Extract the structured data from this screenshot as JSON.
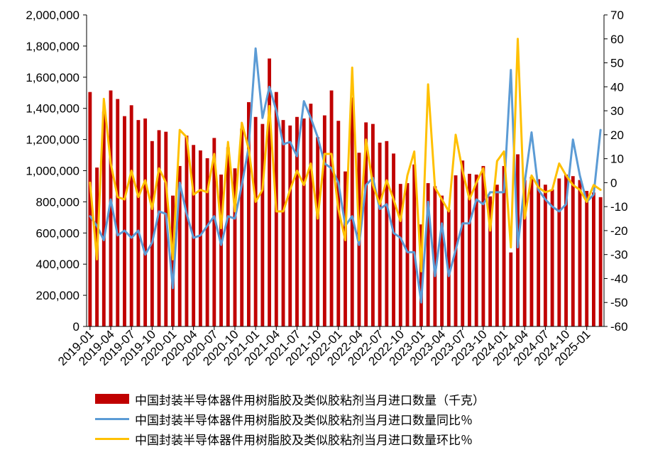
{
  "chart_data": {
    "type": "bar+line",
    "title": "",
    "categories": [
      "2019-01",
      "2019-02",
      "2019-03",
      "2019-04",
      "2019-05",
      "2019-06",
      "2019-07",
      "2019-08",
      "2019-09",
      "2019-10",
      "2019-11",
      "2019-12",
      "2020-01",
      "2020-02",
      "2020-03",
      "2020-04",
      "2020-05",
      "2020-06",
      "2020-07",
      "2020-08",
      "2020-09",
      "2020-10",
      "2020-11",
      "2020-12",
      "2021-01",
      "2021-02",
      "2021-03",
      "2021-04",
      "2021-05",
      "2021-06",
      "2021-07",
      "2021-08",
      "2021-09",
      "2021-10",
      "2021-11",
      "2021-12",
      "2022-01",
      "2022-02",
      "2022-03",
      "2022-04",
      "2022-05",
      "2022-06",
      "2022-07",
      "2022-08",
      "2022-09",
      "2022-10",
      "2022-11",
      "2022-12",
      "2023-01",
      "2023-02",
      "2023-03",
      "2023-04",
      "2023-05",
      "2023-06",
      "2023-07",
      "2023-08",
      "2023-09",
      "2023-10",
      "2023-11",
      "2023-12",
      "2024-01",
      "2024-02",
      "2024-03",
      "2024-04",
      "2024-05",
      "2024-06",
      "2024-07",
      "2024-08",
      "2024-09",
      "2024-10",
      "2024-11",
      "2024-12",
      "2025-01",
      "2025-02",
      "2025-03"
    ],
    "x_tick_labels": [
      "2019-01",
      "2019-04",
      "2019-07",
      "2019-10",
      "2020-01",
      "2020-04",
      "2020-07",
      "2020-10",
      "2021-01",
      "2021-04",
      "2021-07",
      "2021-10",
      "2022-01",
      "2022-04",
      "2022-07",
      "2022-10",
      "2023-01",
      "2023-04",
      "2023-07",
      "2023-10",
      "2024-01",
      "2024-04",
      "2024-07",
      "2024-10",
      "2025-01"
    ],
    "y_left": {
      "ylim": [
        0,
        2000000
      ],
      "ticks": [
        "0",
        "200,000",
        "400,000",
        "600,000",
        "800,000",
        "1,000,000",
        "1,200,000",
        "1,400,000",
        "1,600,000",
        "1,800,000",
        "2,000,000"
      ]
    },
    "y_right": {
      "ylim": [
        -60,
        70
      ],
      "ticks": [
        "-60",
        "-50",
        "-40",
        "-30",
        "-20",
        "-10",
        "0",
        "10",
        "20",
        "30",
        "40",
        "50",
        "60",
        "70"
      ]
    },
    "series": [
      {
        "name": "中国封装半导体器件用树脂胶及类似胶粘剂当月进口数量（千克）",
        "type": "bar",
        "axis": "left",
        "color": "#C00000",
        "values": [
          1505000,
          1020000,
          1380000,
          1515000,
          1460000,
          1350000,
          1420000,
          1325000,
          1335000,
          1190000,
          1260000,
          1250000,
          840000,
          1030000,
          1225000,
          1165000,
          1130000,
          1080000,
          1210000,
          975000,
          1150000,
          1015000,
          1270000,
          1440000,
          1345000,
          1300000,
          1720000,
          1505000,
          1325000,
          1290000,
          1345000,
          1335000,
          1430000,
          1215000,
          1355000,
          1515000,
          1320000,
          995000,
          1470000,
          1115000,
          1310000,
          1300000,
          1180000,
          1190000,
          1110000,
          915000,
          920000,
          1040000,
          655000,
          920000,
          900000,
          840000,
          750000,
          970000,
          1065000,
          980000,
          975000,
          1030000,
          835000,
          910000,
          1030000,
          475000,
          1105000,
          940000,
          960000,
          945000,
          910000,
          880000,
          950000,
          975000,
          965000,
          940000,
          870000,
          860000,
          830000
        ]
      },
      {
        "name": "中国封装半导体器件用树脂胶及类似胶粘剂当月进口数量同比％",
        "type": "line",
        "axis": "right",
        "color": "#5B9BD5",
        "values": [
          -14,
          -18,
          -24,
          -7,
          -22,
          -20,
          -23,
          -20,
          -30,
          -25,
          -12,
          -13,
          -44,
          0,
          -13,
          -23,
          -22,
          -18,
          -14,
          -26,
          -14,
          -15,
          -1,
          15,
          56,
          27,
          40,
          30,
          16,
          17,
          11,
          34,
          27,
          19,
          8,
          6,
          0,
          -18,
          -14,
          -26,
          -1,
          2,
          -11,
          -9,
          -21,
          -23,
          -29,
          -29,
          -50,
          -8,
          -39,
          -17,
          -39,
          -28,
          -17,
          -17,
          -7,
          -9,
          -4,
          -4,
          -4,
          47,
          -27,
          0,
          21,
          -3,
          -7,
          -10,
          -12,
          -9,
          18,
          3,
          -8,
          -5,
          22
        ]
      },
      {
        "name": "中国封装半导体器件用树脂胶及类似胶粘剂当月进口数量环比％",
        "type": "line",
        "axis": "right",
        "color": "#FFC000",
        "values": [
          0,
          -32,
          35,
          8,
          -6,
          -7,
          5,
          -6,
          1,
          -11,
          6,
          0,
          -32,
          22,
          19,
          -5,
          -3,
          -4,
          12,
          -19,
          17,
          -12,
          25,
          14,
          -8,
          -3,
          32,
          -12,
          -12,
          -3,
          5,
          -1,
          8,
          -15,
          12,
          12,
          -11,
          -24,
          48,
          -24,
          18,
          -1,
          -9,
          1,
          -7,
          -16,
          3,
          13,
          -37,
          41,
          -2,
          -7,
          -12,
          20,
          5,
          -7,
          0,
          6,
          -20,
          9,
          13,
          -27,
          60,
          -15,
          3,
          -2,
          -4,
          -3,
          8,
          3,
          -1,
          -3,
          -8,
          -1,
          -3
        ]
      }
    ],
    "legend_position": "bottom",
    "grid": false
  }
}
